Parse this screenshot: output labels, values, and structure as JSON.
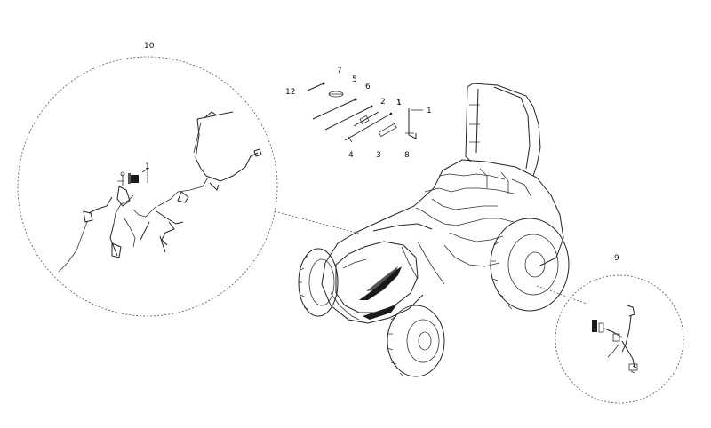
{
  "callouts": {
    "c1": "1",
    "c2": "2",
    "c3": "3",
    "c4": "4",
    "c5": "5",
    "c6": "6",
    "c7": "7",
    "c8": "8",
    "c9": "9",
    "c10": "10",
    "c12": "12",
    "c1_detail": "1"
  }
}
